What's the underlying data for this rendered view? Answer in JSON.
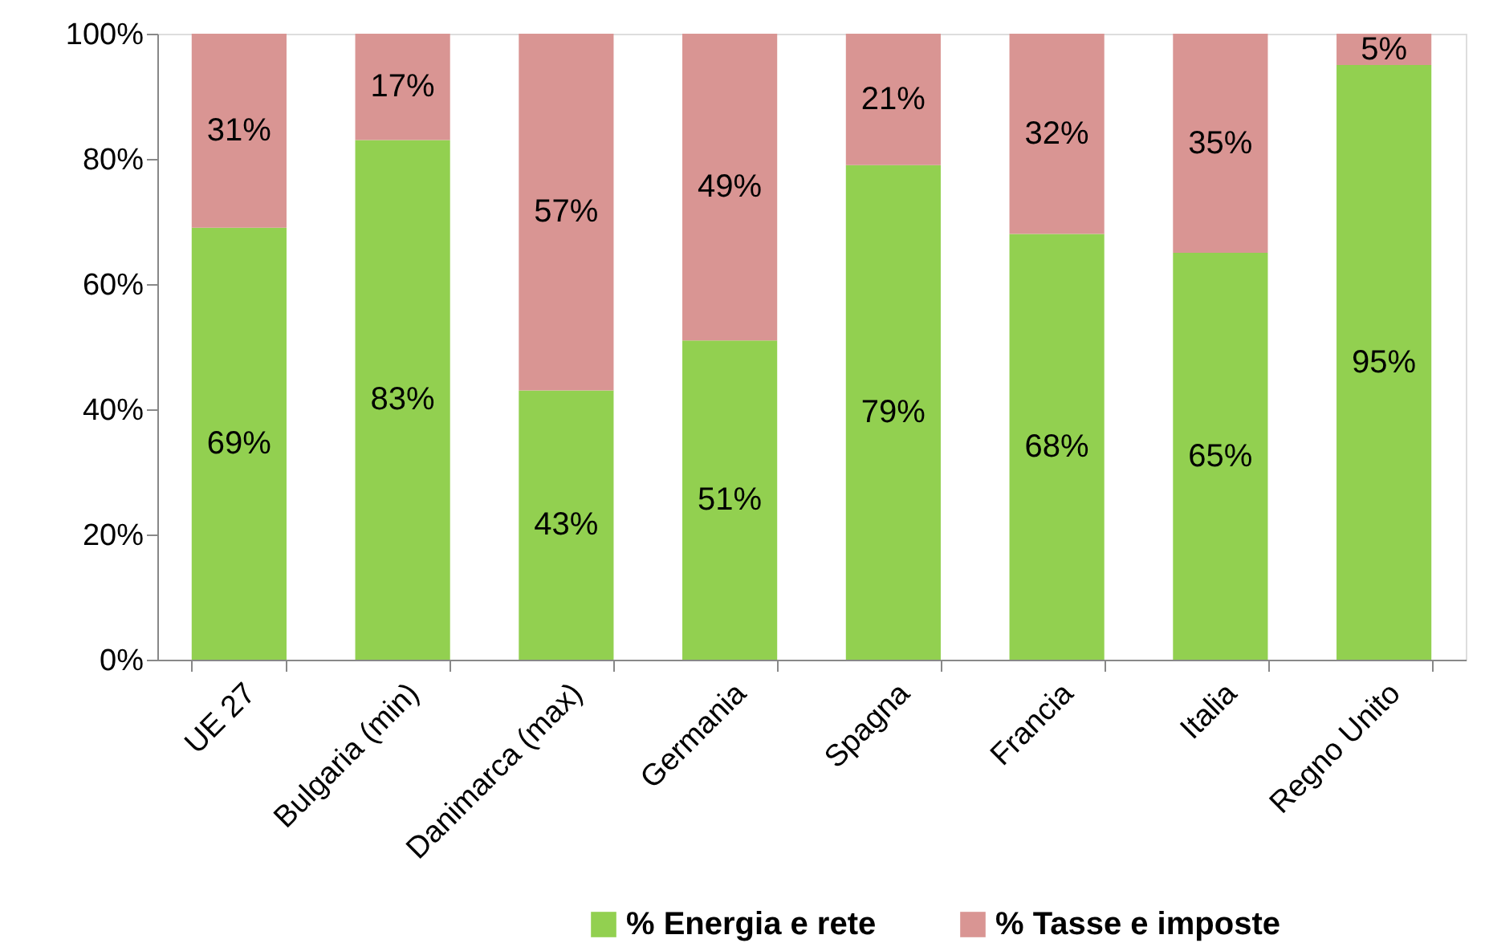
{
  "chart_data": {
    "type": "bar",
    "stacked": true,
    "categories": [
      "UE 27",
      "Bulgaria (min)",
      "Danimarca (max)",
      "Germania",
      "Spagna",
      "Francia",
      "Italia",
      "Regno Unito"
    ],
    "series": [
      {
        "name": "% Energia e rete",
        "color": "#92d050",
        "values": [
          69,
          83,
          43,
          51,
          79,
          68,
          65,
          95
        ],
        "value_labels": [
          "69%",
          "83%",
          "43%",
          "51%",
          "79%",
          "68%",
          "65%",
          "95%"
        ]
      },
      {
        "name": "% Tasse e imposte",
        "color": "#d99593",
        "values": [
          31,
          17,
          57,
          49,
          21,
          32,
          35,
          5
        ],
        "value_labels": [
          "31%",
          "17%",
          "57%",
          "49%",
          "21%",
          "32%",
          "35%",
          "5%"
        ]
      }
    ],
    "ylim": [
      0,
      100
    ],
    "yticks": [
      {
        "value": 0,
        "label": "0%"
      },
      {
        "value": 20,
        "label": "20%"
      },
      {
        "value": 40,
        "label": "40%"
      },
      {
        "value": 60,
        "label": "60%"
      },
      {
        "value": 80,
        "label": "80%"
      },
      {
        "value": 100,
        "label": "100%"
      }
    ],
    "grid": false,
    "legend": "bottom right"
  }
}
